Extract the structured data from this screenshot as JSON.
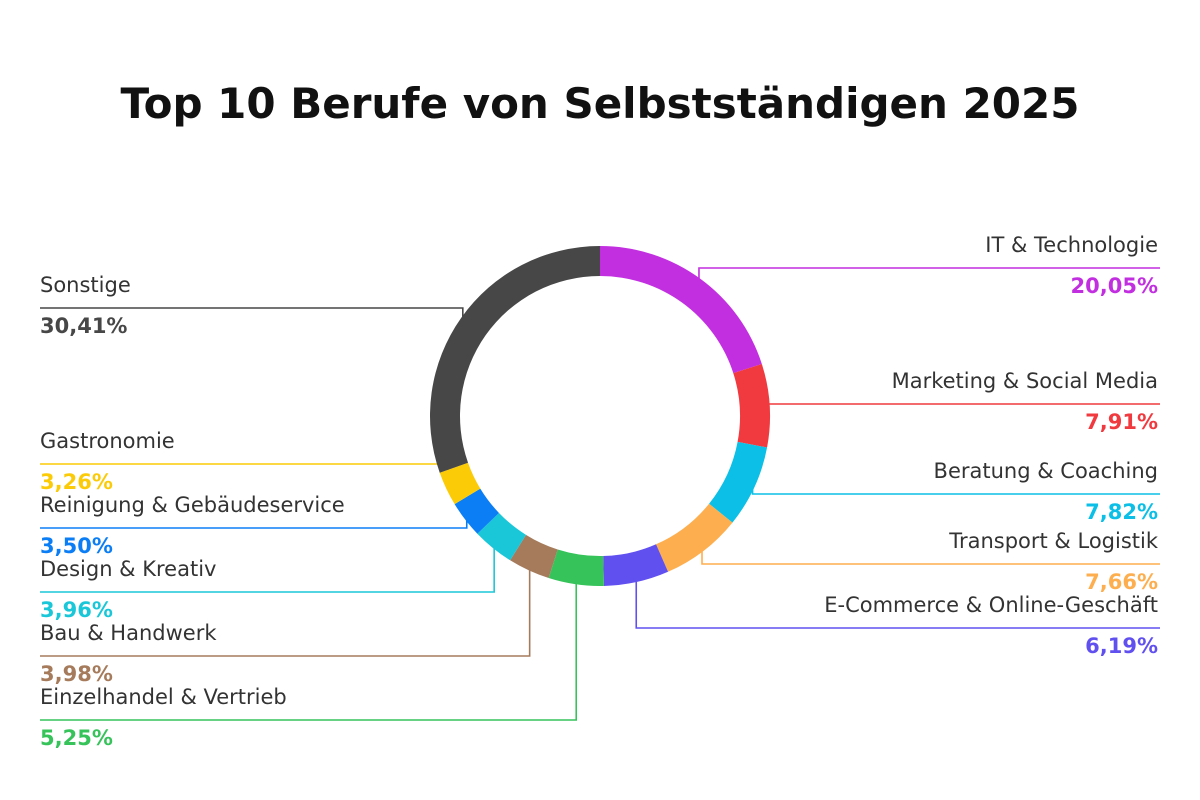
{
  "chart_data": {
    "type": "donut",
    "title": "Top 10 Berufe von Selbstständigen 2025",
    "categories": [
      "IT & Technologie",
      "Marketing & Social Media",
      "Beratung & Coaching",
      "Transport & Logistik",
      "E-Commerce & Online-Geschäft",
      "Einzelhandel & Vertrieb",
      "Bau & Handwerk",
      "Design & Kreativ",
      "Reinigung & Gebäudeservice",
      "Gastronomie",
      "Sonstige"
    ],
    "values": [
      20.05,
      7.91,
      7.82,
      7.66,
      6.19,
      5.25,
      3.98,
      3.96,
      3.5,
      3.26,
      30.41
    ],
    "value_labels": [
      "20,05%",
      "7,91%",
      "7,82%",
      "7,66%",
      "6,19%",
      "5,25%",
      "3,98%",
      "3,96%",
      "3,50%",
      "3,26%",
      "30,41%"
    ],
    "colors": [
      "#c22fe0",
      "#f03a3f",
      "#0bbfe6",
      "#fdae4f",
      "#6150f0",
      "#35c35a",
      "#a57b5c",
      "#1ac7d8",
      "#0b7ef5",
      "#fccb07",
      "#474747"
    ]
  }
}
